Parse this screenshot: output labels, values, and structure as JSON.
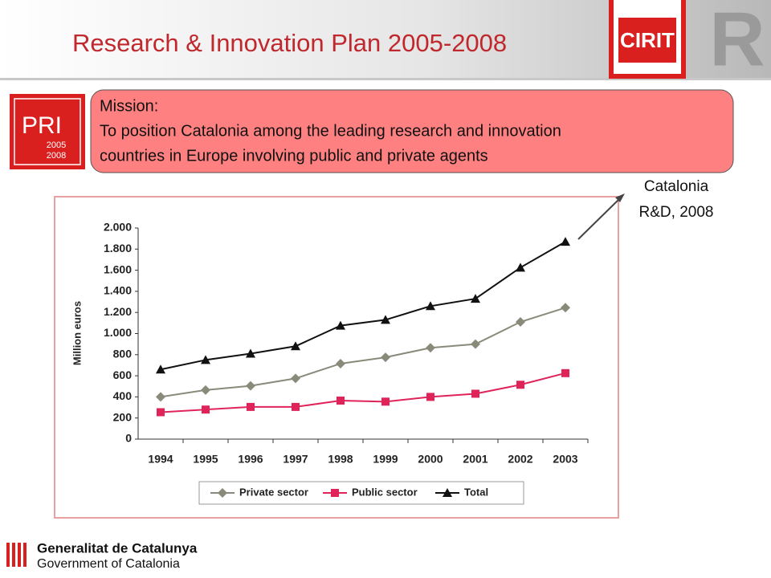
{
  "header": {
    "title": "Research & Innovation Plan 2005-2008",
    "cirit_logo": "CIRIT",
    "r_logo": "R"
  },
  "pri_logo": {
    "name": "PRI",
    "years": [
      "2005",
      "2008"
    ]
  },
  "mission": {
    "label": "Mission:",
    "lines": [
      "To position Catalonia among the leading research and innovation",
      "countries in Europe involving public and private agents"
    ]
  },
  "chart_data": {
    "type": "line",
    "ylabel": "Million euros",
    "categories": [
      "1994",
      "1995",
      "1996",
      "1997",
      "1998",
      "1999",
      "2000",
      "2001",
      "2002",
      "2003"
    ],
    "series": [
      {
        "name": "Private sector",
        "color": "#8a8a7a",
        "marker": "diamond",
        "values": [
          400,
          465,
          505,
          575,
          715,
          775,
          865,
          900,
          1110,
          1245
        ]
      },
      {
        "name": "Public sector",
        "color": "#e0245a",
        "marker": "square",
        "values": [
          255,
          280,
          305,
          305,
          365,
          355,
          400,
          430,
          515,
          625
        ]
      },
      {
        "name": "Total",
        "color": "#111111",
        "marker": "triangle",
        "values": [
          660,
          750,
          810,
          880,
          1075,
          1130,
          1260,
          1330,
          1625,
          1870
        ]
      }
    ],
    "ylim": [
      0,
      2000
    ],
    "yticks": [
      0,
      200,
      400,
      600,
      800,
      {
        "value": 1000,
        "label": "1.000"
      },
      {
        "value": 1200,
        "label": "1.200"
      },
      {
        "value": 1400,
        "label": "1.400"
      },
      {
        "value": 1600,
        "label": "1.600"
      },
      {
        "value": 1800,
        "label": "1.800"
      },
      {
        "value": 2000,
        "label": "2.000"
      }
    ],
    "grid": false,
    "legend": "bottom",
    "annotation": [
      "Catalonia",
      "R&D, 2008"
    ]
  },
  "footer": {
    "lines": [
      "Generalitat de Catalunya",
      "Government of Catalonia"
    ]
  }
}
